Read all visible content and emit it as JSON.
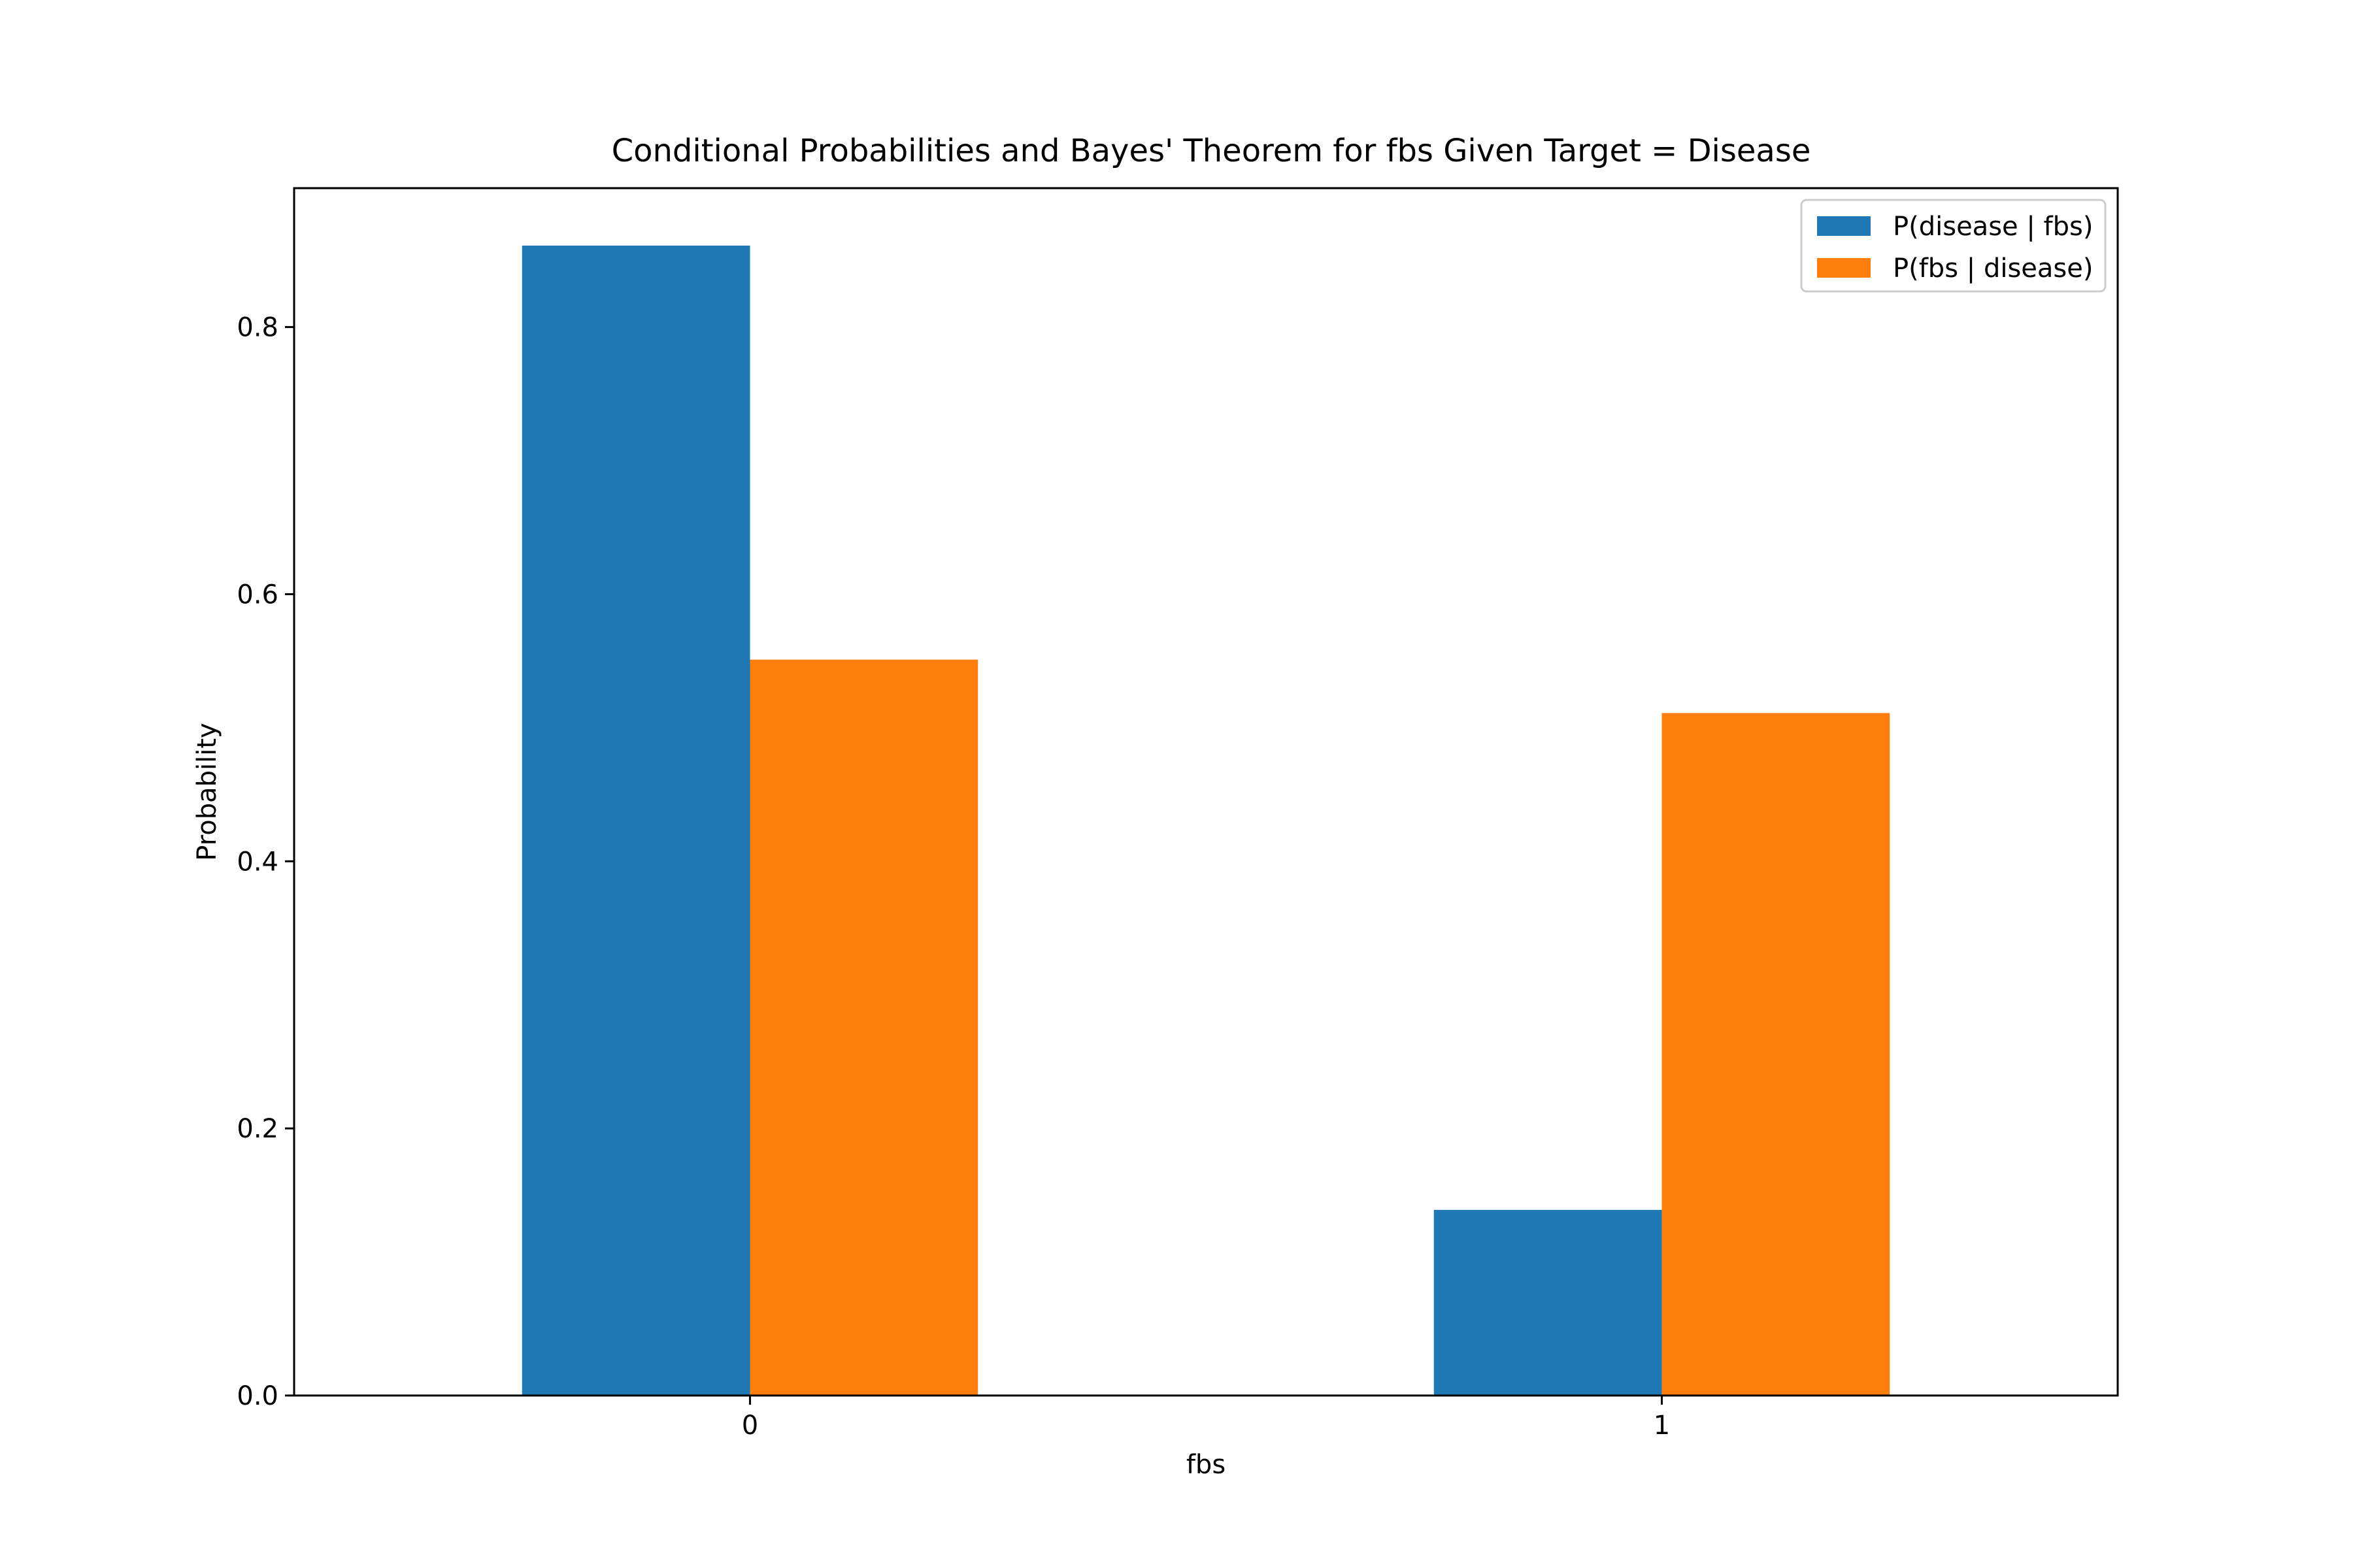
{
  "chart_data": {
    "type": "bar",
    "title": "Conditional Probabilities and Bayes' Theorem for fbs Given Target = Disease",
    "xlabel": "fbs",
    "ylabel": "Probability",
    "categories": [
      "0",
      "1"
    ],
    "series": [
      {
        "name": "P(disease | fbs)",
        "values": [
          0.861,
          0.139
        ],
        "color": "#1f77b4"
      },
      {
        "name": "P(fbs | disease)",
        "values": [
          0.551,
          0.511
        ],
        "color": "#ff7f0e"
      }
    ],
    "ylim": [
      0,
      0.904
    ],
    "yticks": [
      0.0,
      0.2,
      0.4,
      0.6,
      0.8
    ],
    "ytick_labels": [
      "0.0",
      "0.2",
      "0.4",
      "0.6",
      "0.8"
    ],
    "grid": false,
    "legend_position": "top-right"
  }
}
